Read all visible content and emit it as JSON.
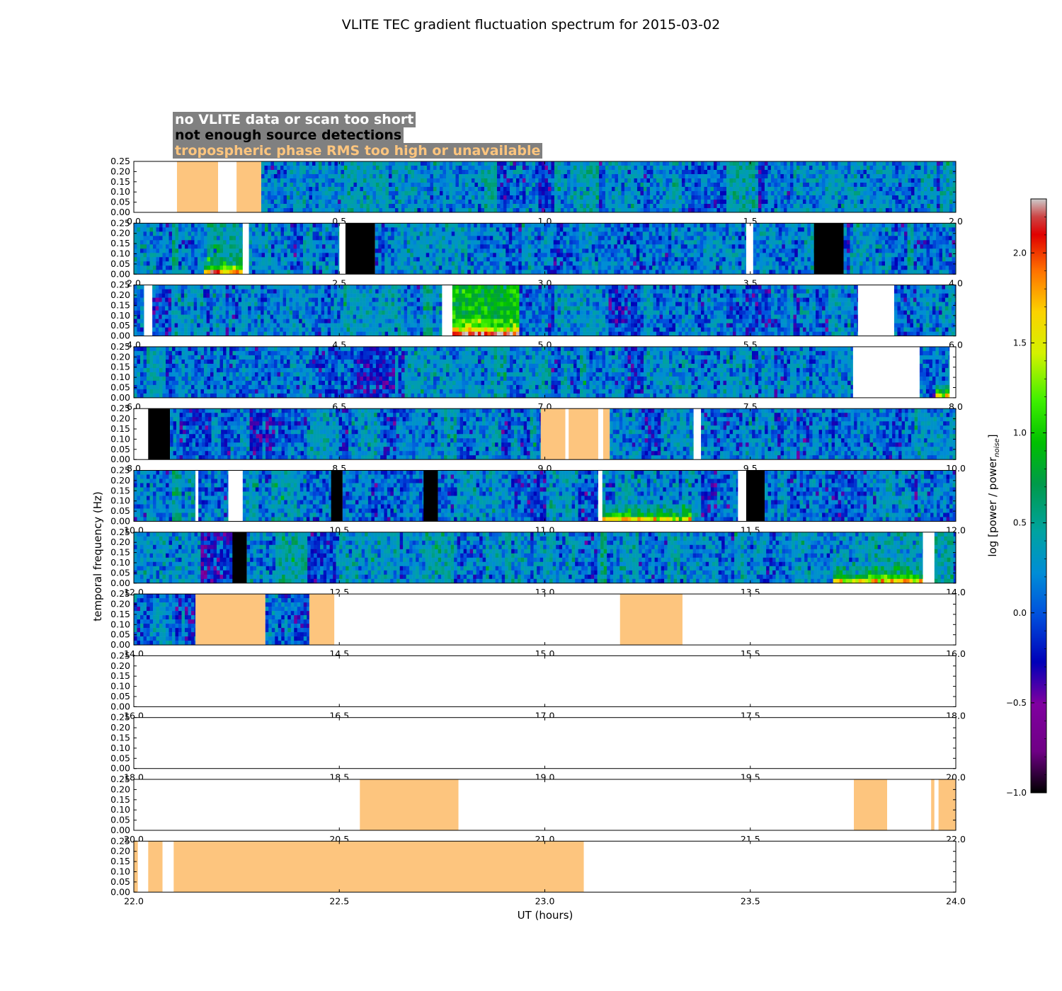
{
  "chart_data": {
    "type": "heatmap",
    "title": "VLITE TEC gradient fluctuation spectrum for 2015-03-02",
    "xlabel": "UT (hours)",
    "ylabel": "temporal frequency (Hz)",
    "colorbar_label": "log [power / power",
    "colorbar_label_sub": "noise",
    "colorbar_label_end": "]",
    "colorbar_range": [
      -1.0,
      2.3
    ],
    "colorbar_ticks": [
      "2.0",
      "1.5",
      "1.0",
      "0.5",
      "0.0",
      "−0.5",
      "−1.0"
    ],
    "colorbar_tick_values": [
      2.0,
      1.5,
      1.0,
      0.5,
      0.0,
      -0.5,
      -1.0
    ],
    "colormap": "nipy_spectral",
    "ylim": [
      0,
      0.25
    ],
    "y_ticks": [
      "0.25",
      "0.20",
      "0.15",
      "0.10",
      "0.05",
      "0.00"
    ],
    "legend": [
      {
        "label": "no VLITE data or scan too short",
        "color": "#ffffff"
      },
      {
        "label": "not enough source detections",
        "color": "#000000"
      },
      {
        "label": "tropospheric phase RMS too high or unavailable",
        "color": "#fdc57e"
      }
    ],
    "panels": [
      {
        "xlim": [
          0,
          2
        ],
        "ticks": [
          "0.0",
          "0.5",
          "1.0",
          "1.5",
          "2.0"
        ],
        "segments": [
          {
            "type": "nodata",
            "x0": 0.0,
            "x1": 0.105
          },
          {
            "type": "trop",
            "x0": 0.105,
            "x1": 0.205
          },
          {
            "type": "nodata",
            "x0": 0.205,
            "x1": 0.25
          },
          {
            "type": "trop",
            "x0": 0.25,
            "x1": 0.31
          },
          {
            "type": "data",
            "x0": 0.31,
            "x1": 2.0,
            "mean": 0.05
          }
        ]
      },
      {
        "xlim": [
          2,
          4
        ],
        "ticks": [
          "2.0",
          "2.5",
          "3.0",
          "3.5",
          "4.0"
        ],
        "segments": [
          {
            "type": "data",
            "x0": 2.0,
            "x1": 2.265,
            "mean": 0.05,
            "hot_low": [
              2.17,
              2.265
            ]
          },
          {
            "type": "nodata",
            "x0": 2.265,
            "x1": 2.28
          },
          {
            "type": "data",
            "x0": 2.28,
            "x1": 2.5,
            "mean": 0.1
          },
          {
            "type": "nodata",
            "x0": 2.5,
            "x1": 2.515
          },
          {
            "type": "detect",
            "x0": 2.515,
            "x1": 2.587
          },
          {
            "type": "data",
            "x0": 2.587,
            "x1": 3.49,
            "mean": 0.0
          },
          {
            "type": "nodata",
            "x0": 3.49,
            "x1": 3.507
          },
          {
            "type": "data",
            "x0": 3.507,
            "x1": 3.655,
            "mean": 0.05
          },
          {
            "type": "detect",
            "x0": 3.655,
            "x1": 3.727
          },
          {
            "type": "data",
            "x0": 3.727,
            "x1": 4.0,
            "mean": 0.0
          }
        ]
      },
      {
        "xlim": [
          4,
          6
        ],
        "ticks": [
          "4.0",
          "4.5",
          "5.0",
          "5.5",
          "6.0"
        ],
        "segments": [
          {
            "type": "data",
            "x0": 4.0,
            "x1": 4.025,
            "mean": 0.0
          },
          {
            "type": "nodata",
            "x0": 4.025,
            "x1": 4.045
          },
          {
            "type": "data",
            "x0": 4.045,
            "x1": 4.75,
            "mean": 0.05
          },
          {
            "type": "nodata",
            "x0": 4.75,
            "x1": 4.775
          },
          {
            "type": "data",
            "x0": 4.775,
            "x1": 4.938,
            "mean": 0.55,
            "hot_low": [
              4.775,
              4.938
            ]
          },
          {
            "type": "data",
            "x0": 4.938,
            "x1": 5.762,
            "mean": 0.0
          },
          {
            "type": "nodata",
            "x0": 5.762,
            "x1": 5.85
          },
          {
            "type": "data",
            "x0": 5.85,
            "x1": 6.0,
            "mean": 0.0
          }
        ]
      },
      {
        "xlim": [
          6,
          8
        ],
        "ticks": [
          "6.0",
          "6.5",
          "7.0",
          "7.5",
          "8.0"
        ],
        "segments": [
          {
            "type": "data",
            "x0": 6.0,
            "x1": 7.75,
            "mean": 0.05
          },
          {
            "type": "nodata",
            "x0": 7.75,
            "x1": 7.912
          },
          {
            "type": "data",
            "x0": 7.912,
            "x1": 7.985,
            "mean": 0.0,
            "hot_low": [
              7.95,
              7.985
            ]
          },
          {
            "type": "nodata",
            "x0": 7.985,
            "x1": 8.0
          }
        ]
      },
      {
        "xlim": [
          8,
          10
        ],
        "ticks": [
          "8.0",
          "8.5",
          "9.0",
          "9.5",
          "10.0"
        ],
        "segments": [
          {
            "type": "nodata",
            "x0": 8.0,
            "x1": 8.035
          },
          {
            "type": "detect",
            "x0": 8.035,
            "x1": 8.088
          },
          {
            "type": "data",
            "x0": 8.088,
            "x1": 8.99,
            "mean": 0.0
          },
          {
            "type": "trop",
            "x0": 8.99,
            "x1": 9.05
          },
          {
            "type": "nodata",
            "x0": 9.05,
            "x1": 9.058
          },
          {
            "type": "trop",
            "x0": 9.058,
            "x1": 9.13
          },
          {
            "type": "nodata",
            "x0": 9.13,
            "x1": 9.142
          },
          {
            "type": "trop",
            "x0": 9.142,
            "x1": 9.158
          },
          {
            "type": "data",
            "x0": 9.158,
            "x1": 9.362,
            "mean": 0.05
          },
          {
            "type": "nodata",
            "x0": 9.362,
            "x1": 9.38
          },
          {
            "type": "data",
            "x0": 9.38,
            "x1": 10.0,
            "mean": 0.0
          }
        ]
      },
      {
        "xlim": [
          10,
          12
        ],
        "ticks": [
          "10.0",
          "10.5",
          "11.0",
          "11.5",
          "12.0"
        ],
        "segments": [
          {
            "type": "data",
            "x0": 10.0,
            "x1": 10.15,
            "mean": 0.05
          },
          {
            "type": "nodata",
            "x0": 10.15,
            "x1": 10.157
          },
          {
            "type": "data",
            "x0": 10.157,
            "x1": 10.23,
            "mean": 0.0
          },
          {
            "type": "nodata",
            "x0": 10.23,
            "x1": 10.265
          },
          {
            "type": "data",
            "x0": 10.265,
            "x1": 10.48,
            "mean": 0.0
          },
          {
            "type": "detect",
            "x0": 10.48,
            "x1": 10.508
          },
          {
            "type": "data",
            "x0": 10.508,
            "x1": 10.705,
            "mean": 0.0
          },
          {
            "type": "detect",
            "x0": 10.705,
            "x1": 10.74
          },
          {
            "type": "data",
            "x0": 10.74,
            "x1": 11.13,
            "mean": 0.0
          },
          {
            "type": "nodata",
            "x0": 11.13,
            "x1": 11.14
          },
          {
            "type": "data",
            "x0": 11.14,
            "x1": 11.47,
            "mean": 0.05,
            "hot_low": [
              11.14,
              11.35
            ]
          },
          {
            "type": "nodata",
            "x0": 11.47,
            "x1": 11.49
          },
          {
            "type": "detect",
            "x0": 11.49,
            "x1": 11.535
          },
          {
            "type": "data",
            "x0": 11.535,
            "x1": 12.0,
            "mean": 0.0
          }
        ]
      },
      {
        "xlim": [
          12,
          14
        ],
        "ticks": [
          "12.0",
          "12.5",
          "13.0",
          "13.5",
          "14.0"
        ],
        "segments": [
          {
            "type": "data",
            "x0": 12.0,
            "x1": 12.24,
            "mean": 0.0
          },
          {
            "type": "detect",
            "x0": 12.24,
            "x1": 12.275
          },
          {
            "type": "data",
            "x0": 12.275,
            "x1": 13.92,
            "mean": 0.05,
            "hot_low": [
              13.7,
              13.92
            ]
          },
          {
            "type": "nodata",
            "x0": 13.92,
            "x1": 13.948
          },
          {
            "type": "data",
            "x0": 13.948,
            "x1": 14.0,
            "mean": 0.0
          }
        ]
      },
      {
        "xlim": [
          14,
          16
        ],
        "ticks": [
          "14.0",
          "14.5",
          "15.0",
          "15.5",
          "16.0"
        ],
        "segments": [
          {
            "type": "data",
            "x0": 14.0,
            "x1": 14.15,
            "mean": 0.0
          },
          {
            "type": "trop",
            "x0": 14.15,
            "x1": 14.32
          },
          {
            "type": "data",
            "x0": 14.32,
            "x1": 14.427,
            "mean": 0.0
          },
          {
            "type": "trop",
            "x0": 14.427,
            "x1": 14.488
          },
          {
            "type": "nodata",
            "x0": 14.488,
            "x1": 15.183
          },
          {
            "type": "trop",
            "x0": 15.183,
            "x1": 15.335
          },
          {
            "type": "nodata",
            "x0": 15.335,
            "x1": 16.0
          }
        ]
      },
      {
        "xlim": [
          16,
          18
        ],
        "ticks": [
          "16.0",
          "16.5",
          "17.0",
          "17.5",
          "18.0"
        ],
        "segments": [
          {
            "type": "nodata",
            "x0": 16.0,
            "x1": 18.0
          }
        ]
      },
      {
        "xlim": [
          18,
          20
        ],
        "ticks": [
          "18.0",
          "18.5",
          "19.0",
          "19.5",
          "20.0"
        ],
        "segments": [
          {
            "type": "nodata",
            "x0": 18.0,
            "x1": 20.0
          }
        ]
      },
      {
        "xlim": [
          20,
          22
        ],
        "ticks": [
          "20.0",
          "20.5",
          "21.0",
          "21.5",
          "22.0"
        ],
        "segments": [
          {
            "type": "nodata",
            "x0": 20.0,
            "x1": 20.55
          },
          {
            "type": "trop",
            "x0": 20.55,
            "x1": 20.79
          },
          {
            "type": "nodata",
            "x0": 20.79,
            "x1": 21.752
          },
          {
            "type": "trop",
            "x0": 21.752,
            "x1": 21.833
          },
          {
            "type": "nodata",
            "x0": 21.833,
            "x1": 21.94
          },
          {
            "type": "trop",
            "x0": 21.94,
            "x1": 21.948
          },
          {
            "type": "nodata",
            "x0": 21.948,
            "x1": 21.958
          },
          {
            "type": "trop",
            "x0": 21.958,
            "x1": 22.0
          }
        ]
      },
      {
        "xlim": [
          22,
          24
        ],
        "ticks": [
          "22.0",
          "22.5",
          "23.0",
          "23.5",
          "24.0"
        ],
        "segments": [
          {
            "type": "trop",
            "x0": 22.0,
            "x1": 22.01
          },
          {
            "type": "nodata",
            "x0": 22.01,
            "x1": 22.035
          },
          {
            "type": "trop",
            "x0": 22.035,
            "x1": 22.07
          },
          {
            "type": "nodata",
            "x0": 22.07,
            "x1": 22.097
          },
          {
            "type": "trop",
            "x0": 22.097,
            "x1": 23.095
          },
          {
            "type": "nodata",
            "x0": 23.095,
            "x1": 24.0
          }
        ]
      }
    ]
  }
}
